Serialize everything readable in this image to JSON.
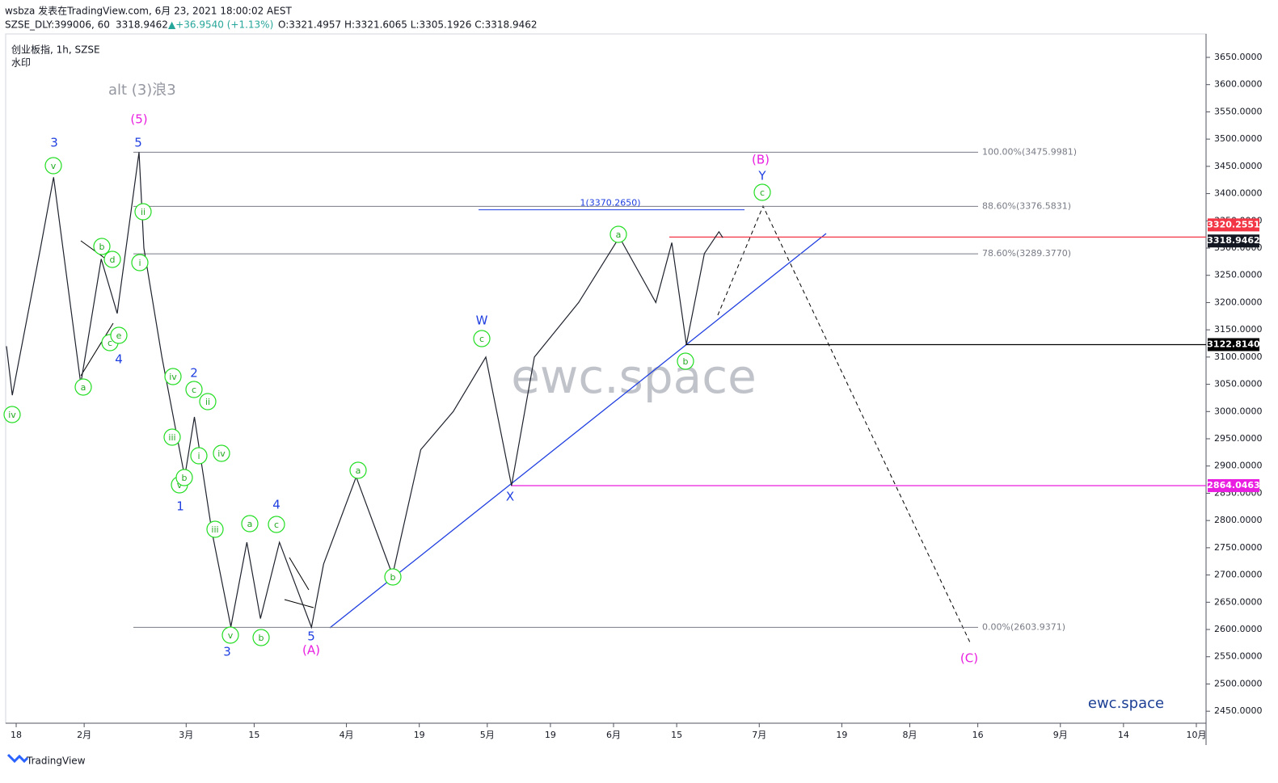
{
  "header": {
    "publisher": "wsbza 发表在TradingView.com, 6月 23, 2021 18:00:02 AEST",
    "symbol": "SZSE_DLY:399006, 60",
    "price": "3318.9462",
    "change": "▲+36.9540 (+1.13%)",
    "ohlc": "O:3321.4957 H:3321.6065 L:3305.1926 C:3318.9462"
  },
  "footer": "TradingView",
  "chart_data": {
    "type": "line",
    "title": "创业板指, 1h, SZSE",
    "subtitle": "水印",
    "note": "alt (3)浪3",
    "watermark": "ewc.space",
    "signature": "ewc.space",
    "color": "#1e222d",
    "x": [
      0,
      1.2,
      7,
      9.7,
      15.3,
      19.5,
      22.8,
      27.3,
      28.3,
      32,
      36.7,
      38.7,
      42.3,
      46.2,
      49.5,
      52.3,
      56.2,
      62.8,
      65.3,
      72,
      79.5,
      85.3,
      92,
      98.7,
      104,
      108.7,
      117.8,
      126.2,
      133.7,
      137,
      140,
      143.7,
      146.7,
      147.5
    ],
    "values": [
      3120,
      3030,
      3300,
      3430,
      3051,
      3280,
      3180,
      3476,
      3300,
      3100,
      2880,
      2990,
      2780,
      2605,
      2760,
      2620,
      2760,
      2604,
      2720,
      2880,
      2700,
      2930,
      3000,
      3100,
      2864,
      3100,
      3200,
      3320,
      3200,
      3310,
      3123,
      3290,
      3330,
      3319
    ],
    "xlim": [
      0,
      247
    ],
    "ylim": [
      2428,
      3693
    ],
    "xticks": [
      {
        "value": 2,
        "label": "18"
      },
      {
        "value": 16,
        "label": "2月"
      },
      {
        "value": 37,
        "label": "3月"
      },
      {
        "value": 51,
        "label": "15"
      },
      {
        "value": 70,
        "label": "4月"
      },
      {
        "value": 85,
        "label": "19"
      },
      {
        "value": 99,
        "label": "5月"
      },
      {
        "value": 112,
        "label": "19"
      },
      {
        "value": 125,
        "label": "6月"
      },
      {
        "value": 138,
        "label": "15"
      },
      {
        "value": 155,
        "label": "7月"
      },
      {
        "value": 172,
        "label": "19"
      },
      {
        "value": 186,
        "label": "8月"
      },
      {
        "value": 200,
        "label": "16"
      },
      {
        "value": 217,
        "label": "9月"
      },
      {
        "value": 230,
        "label": "14"
      },
      {
        "value": 245,
        "label": "10月"
      }
    ],
    "yticks": [
      {
        "value": 2450,
        "label": "2450.0000"
      },
      {
        "value": 2500,
        "label": "2500.0000"
      },
      {
        "value": 2550,
        "label": "2550.0000"
      },
      {
        "value": 2600,
        "label": "2600.0000"
      },
      {
        "value": 2650,
        "label": "2650.0000"
      },
      {
        "value": 2700,
        "label": "2700.0000"
      },
      {
        "value": 2750,
        "label": "2750.0000"
      },
      {
        "value": 2800,
        "label": "2800.0000"
      },
      {
        "value": 2850,
        "label": "2850.0000"
      },
      {
        "value": 2900,
        "label": "2900.0000"
      },
      {
        "value": 2950,
        "label": "2950.0000"
      },
      {
        "value": 3000,
        "label": "3000.0000"
      },
      {
        "value": 3050,
        "label": "3050.0000"
      },
      {
        "value": 3100,
        "label": "3100.0000"
      },
      {
        "value": 3150,
        "label": "3150.0000"
      },
      {
        "value": 3200,
        "label": "3200.0000"
      },
      {
        "value": 3250,
        "label": "3250.0000"
      },
      {
        "value": 3300,
        "label": "3300.0000"
      },
      {
        "value": 3350,
        "label": "3350.0000"
      },
      {
        "value": 3400,
        "label": "3400.0000"
      },
      {
        "value": 3450,
        "label": "3450.0000"
      },
      {
        "value": 3500,
        "label": "3500.0000"
      },
      {
        "value": 3550,
        "label": "3550.0000"
      },
      {
        "value": 3600,
        "label": "3600.0000"
      },
      {
        "value": 3650,
        "label": "3650.0000"
      }
    ],
    "fib_levels": [
      {
        "value": 3475.9981,
        "label": "100.00%(3475.9981)"
      },
      {
        "value": 3376.5831,
        "label": "88.60%(3376.5831)"
      },
      {
        "value": 3289.377,
        "label": "78.60%(3289.3770)"
      },
      {
        "value": 2603.9371,
        "label": "0.00%(2603.9371)"
      }
    ],
    "target_line": {
      "value": 3370.265,
      "label": "1(3370.2650)"
    },
    "price_lines": [
      {
        "value": 3320.2551,
        "color": "#f23645"
      },
      {
        "value": {
          "value": 3122.814,
          "label": "3122.8140"
        },
        "color": "#000000"
      },
      {
        "value": 2864.0463,
        "color": "#e91ee0"
      }
    ],
    "last_price": 3318.9462,
    "annotations": [
      "3",
      "v",
      "(5)",
      "5",
      "ii",
      "i",
      "b",
      "d",
      "c",
      "e",
      "4",
      "a",
      "iv",
      "iv",
      "2",
      "c",
      "ii",
      "iii",
      "i",
      "iv",
      "v",
      "b",
      "1",
      "iii",
      "a",
      "c",
      "4",
      "v",
      "3",
      "b",
      "5",
      "(A)",
      "a",
      "b",
      "W",
      "c",
      "X",
      "a",
      "b",
      "(B)",
      "Y",
      "c",
      "(C)"
    ]
  }
}
